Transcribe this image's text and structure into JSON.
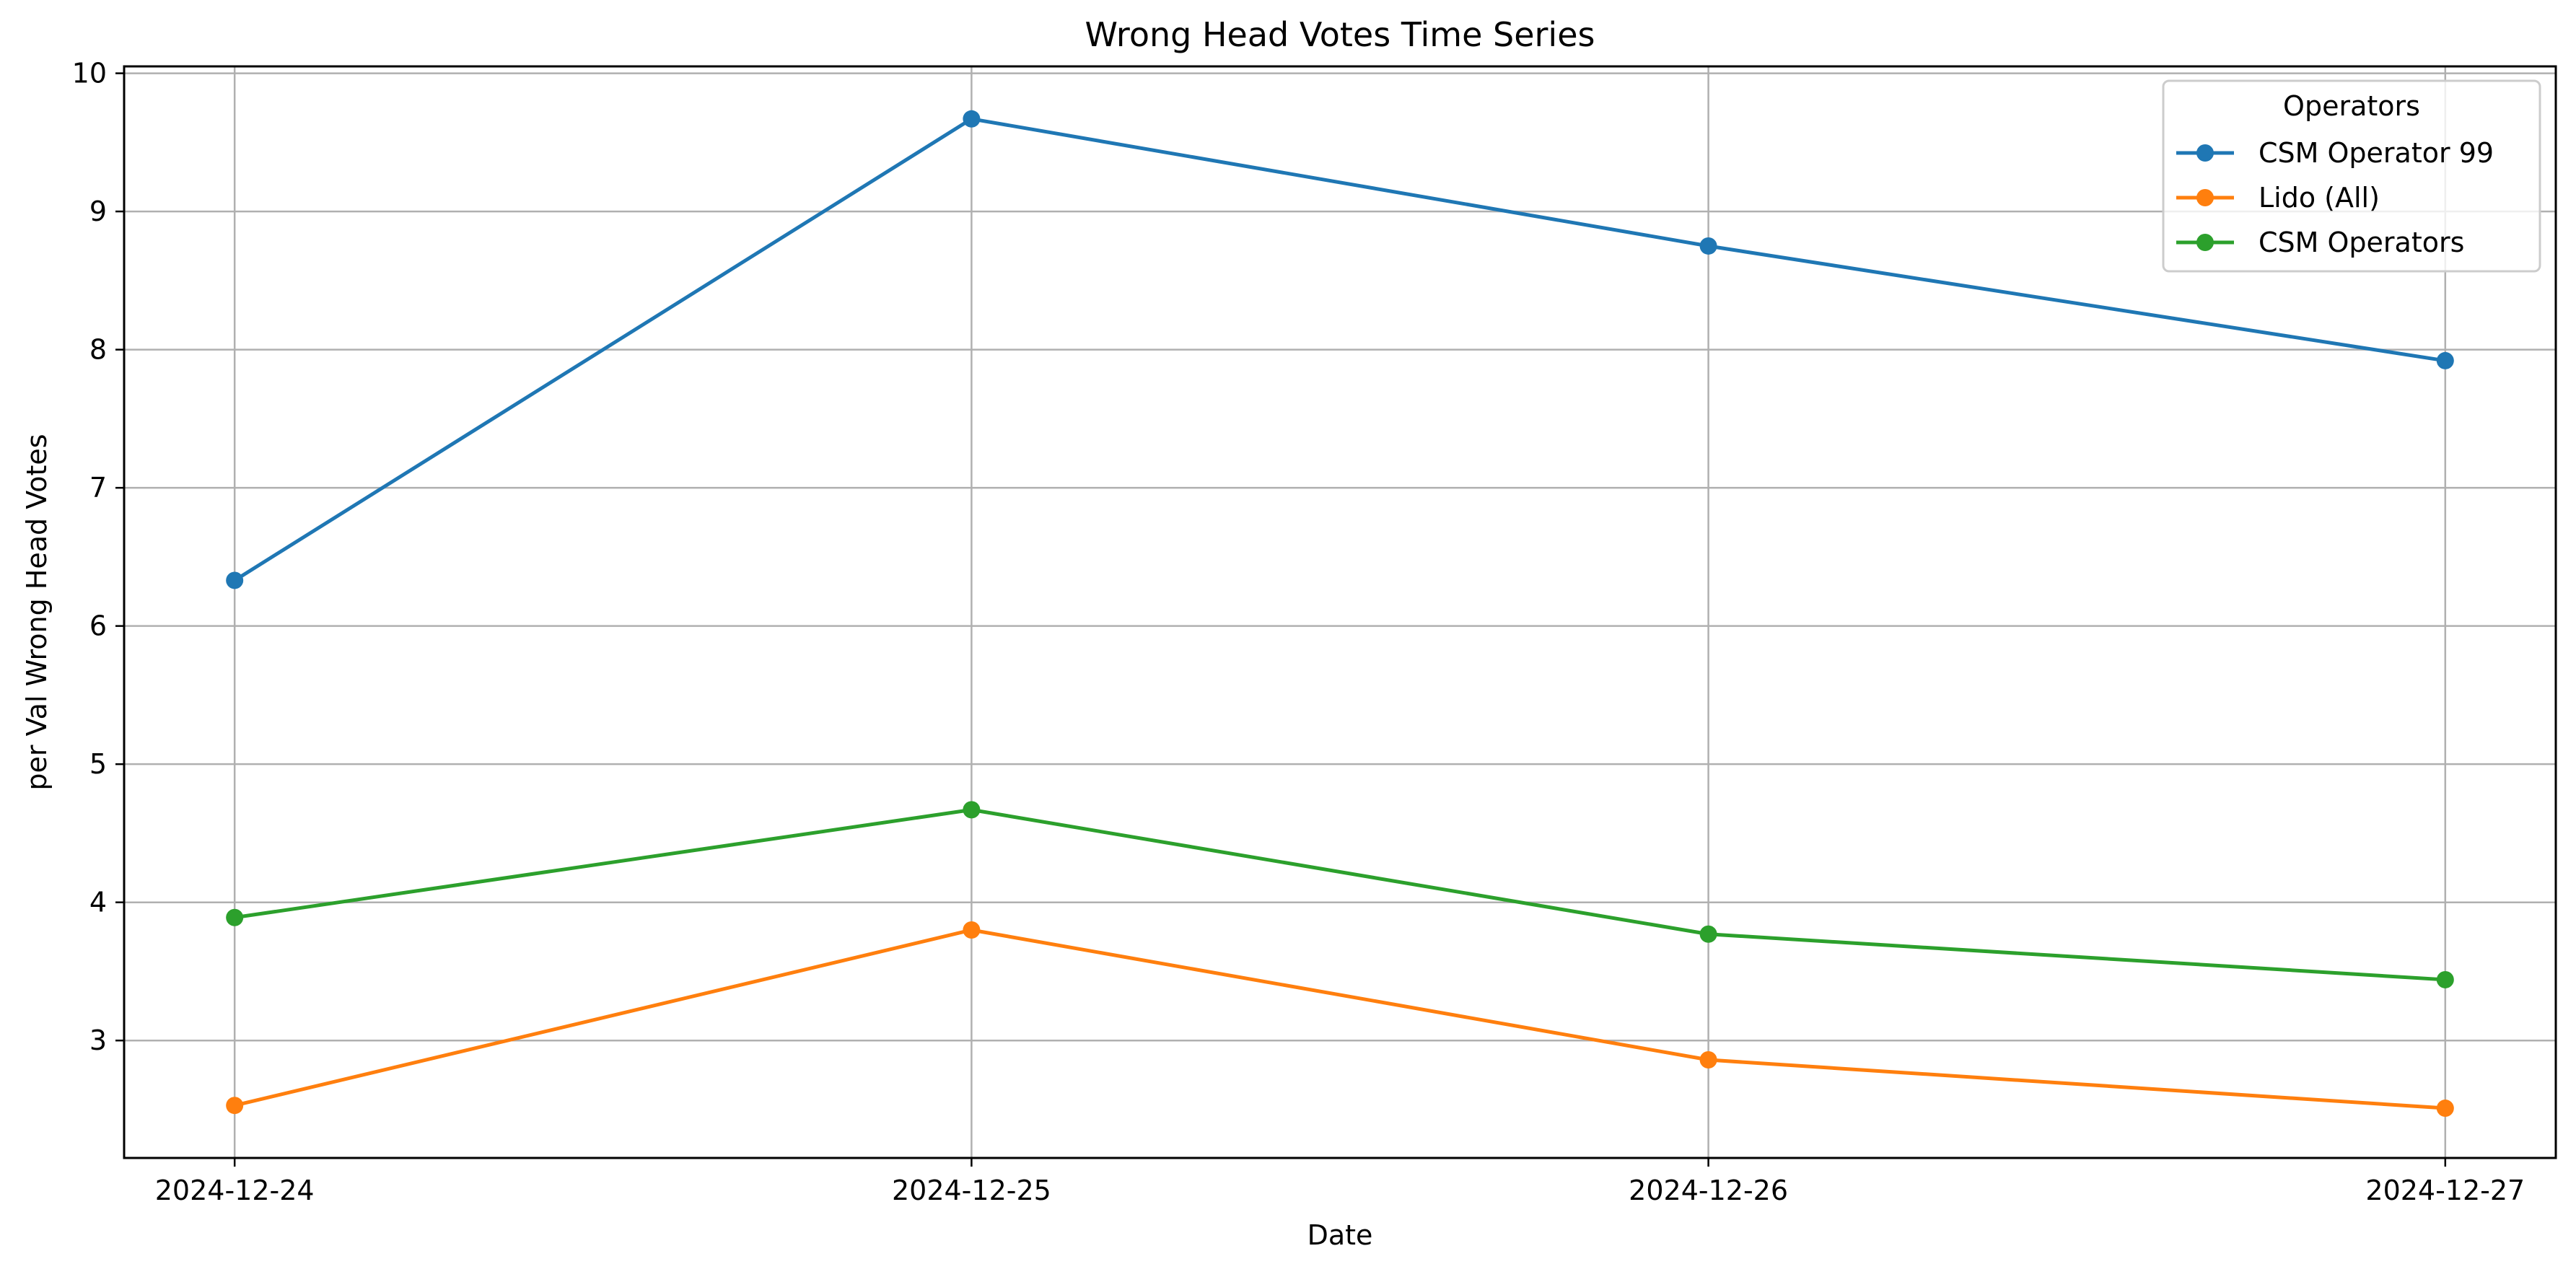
{
  "chart_data": {
    "type": "line",
    "title": "Wrong Head Votes Time Series",
    "xlabel": "Date",
    "ylabel": "per Val Wrong Head Votes",
    "x": [
      "2024-12-24",
      "2024-12-25",
      "2024-12-26",
      "2024-12-27"
    ],
    "ylim": [
      2.15,
      10.05
    ],
    "yticks": [
      3,
      4,
      5,
      6,
      7,
      8,
      9,
      10
    ],
    "grid": true,
    "legend": {
      "title": "Operators",
      "placement": "top-right"
    },
    "series": [
      {
        "name": "CSM Operator 99",
        "color": "#1f77b4",
        "marker": "circle",
        "values": [
          6.33,
          9.67,
          8.75,
          7.92
        ]
      },
      {
        "name": "Lido (All)",
        "color": "#ff7f0e",
        "marker": "circle",
        "values": [
          2.53,
          3.8,
          2.86,
          2.51
        ]
      },
      {
        "name": "CSM Operators",
        "color": "#2ca02c",
        "marker": "circle",
        "values": [
          3.89,
          4.67,
          3.77,
          3.44
        ]
      }
    ]
  }
}
